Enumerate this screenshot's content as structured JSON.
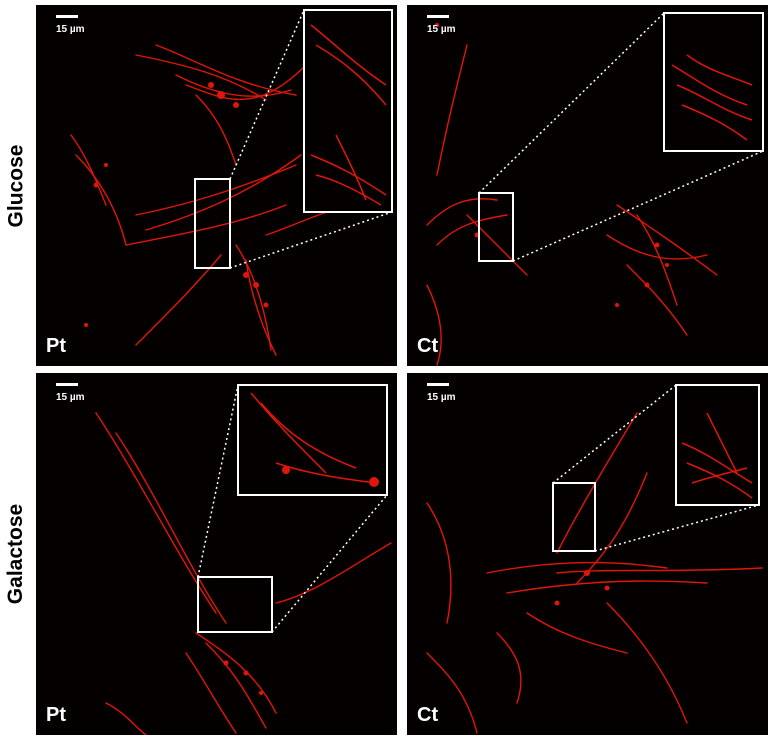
{
  "rows": [
    {
      "label": "Glucose"
    },
    {
      "label": "Galactose"
    }
  ],
  "panels": [
    {
      "condition": "Glucose",
      "sample": "Pt",
      "scale_bar": "15 µm"
    },
    {
      "condition": "Glucose",
      "sample": "Ct",
      "scale_bar": "15 µm"
    },
    {
      "condition": "Galactose",
      "sample": "Pt",
      "scale_bar": "15 µm"
    },
    {
      "condition": "Galactose",
      "sample": "Ct",
      "scale_bar": "15 µm"
    }
  ],
  "colors": {
    "mitochondria": "#e0160a",
    "background": "#050000",
    "frame": "#ffffff"
  }
}
